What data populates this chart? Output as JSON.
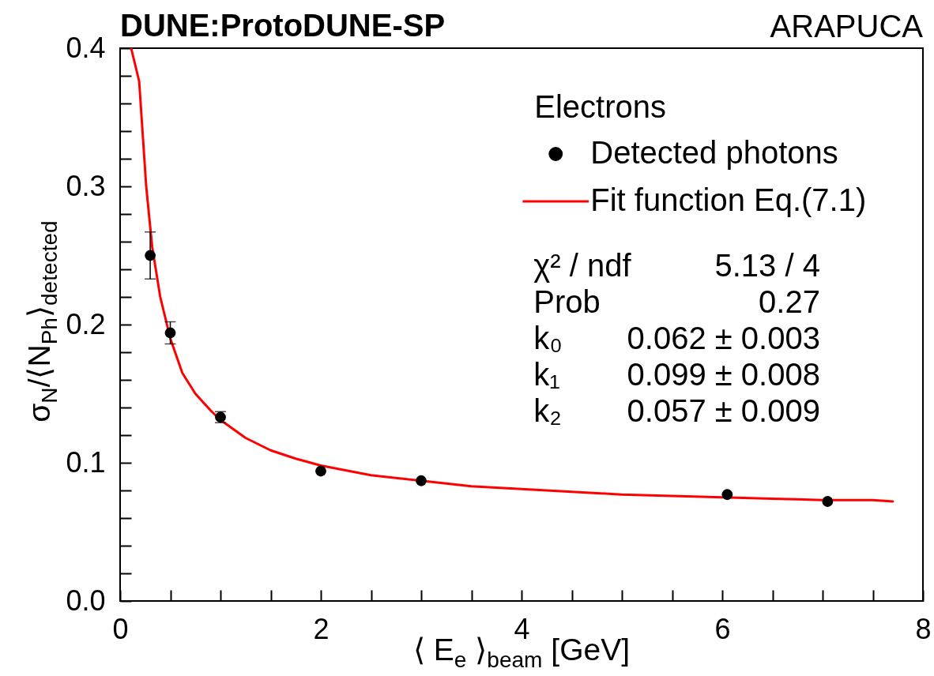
{
  "chart_data": {
    "type": "scatter",
    "title": "DUNE:ProtoDUNE-SP",
    "subtitle": "ARAPUCA",
    "xlabel": "⟨ E$_{e}$ ⟩$_{beam}$ [GeV]",
    "ylabel": "σ$_{N}$/⟨N$_{Ph}$⟩$_{detected}$",
    "legend_title": "Electrons",
    "annotations": [
      "χ² / ndf",
      "5.13 / 4",
      "Prob",
      "0.27",
      "k₀",
      "0.062 ± 0.003",
      "k₁",
      "0.099 ± 0.008",
      "k₂",
      "0.057 ± 0.009"
    ],
    "xlim": [
      0,
      8
    ],
    "xticks": [
      0,
      {
        "value": 0.5,
        "label": null
      },
      {
        "value": 1,
        "label": null
      },
      {
        "value": 1.5,
        "label": null
      },
      2,
      {
        "value": 2.5,
        "label": null
      },
      {
        "value": 3,
        "label": null
      },
      {
        "value": 3.5,
        "label": null
      },
      4,
      {
        "value": 4.5,
        "label": null
      },
      {
        "value": 5,
        "label": null
      },
      {
        "value": 5.5,
        "label": null
      },
      6,
      {
        "value": 6.5,
        "label": null
      },
      {
        "value": 7,
        "label": null
      },
      {
        "value": 7.5,
        "label": null
      },
      8
    ],
    "ylim": [
      0,
      0.4
    ],
    "yticks": [
      {
        "value": 0,
        "label": "0.0"
      },
      {
        "value": 0.02,
        "label": null
      },
      {
        "value": 0.04,
        "label": null
      },
      {
        "value": 0.06,
        "label": null
      },
      {
        "value": 0.08,
        "label": null
      },
      0.1,
      {
        "value": 0.12,
        "label": null
      },
      {
        "value": 0.14,
        "label": null
      },
      {
        "value": 0.16,
        "label": null
      },
      {
        "value": 0.18,
        "label": null
      },
      0.2,
      {
        "value": 0.22,
        "label": null
      },
      {
        "value": 0.24,
        "label": null
      },
      {
        "value": 0.26,
        "label": null
      },
      {
        "value": 0.28,
        "label": null
      },
      0.3,
      {
        "value": 0.32,
        "label": null
      },
      {
        "value": 0.34,
        "label": null
      },
      {
        "value": 0.36,
        "label": null
      },
      {
        "value": 0.38,
        "label": null
      },
      0.4
    ],
    "legend": "top right",
    "series": [
      {
        "name": "Detected photons",
        "type": "scatter",
        "marker": "circle",
        "color": "#000000",
        "x": [
          0.3,
          0.5,
          1.0,
          2.0,
          3.0,
          6.05,
          7.05
        ],
        "values": [
          0.25,
          0.194,
          0.133,
          0.094,
          0.087,
          0.077,
          0.072
        ],
        "errors": [
          0.017,
          0.008,
          0.004,
          null,
          null,
          null,
          null
        ]
      },
      {
        "name": "Fit function Eq.(7.1)",
        "type": "line",
        "line_style": "solid",
        "color": "#ff0000",
        "x": [
          0.11,
          0.19,
          0.26,
          0.32,
          0.4,
          0.5,
          0.62,
          0.75,
          0.9,
          1.0,
          1.25,
          1.5,
          1.75,
          2.0,
          2.5,
          3.0,
          3.5,
          4.0,
          4.5,
          5.0,
          5.5,
          6.0,
          6.5,
          7.0,
          7.5,
          7.7
        ],
        "values": [
          0.4,
          0.376,
          0.3,
          0.256,
          0.22,
          0.19,
          0.165,
          0.15,
          0.138,
          0.131,
          0.118,
          0.109,
          0.103,
          0.098,
          0.091,
          0.087,
          0.083,
          0.081,
          0.079,
          0.077,
          0.076,
          0.075,
          0.074,
          0.073,
          0.073,
          0.072
        ]
      }
    ]
  }
}
